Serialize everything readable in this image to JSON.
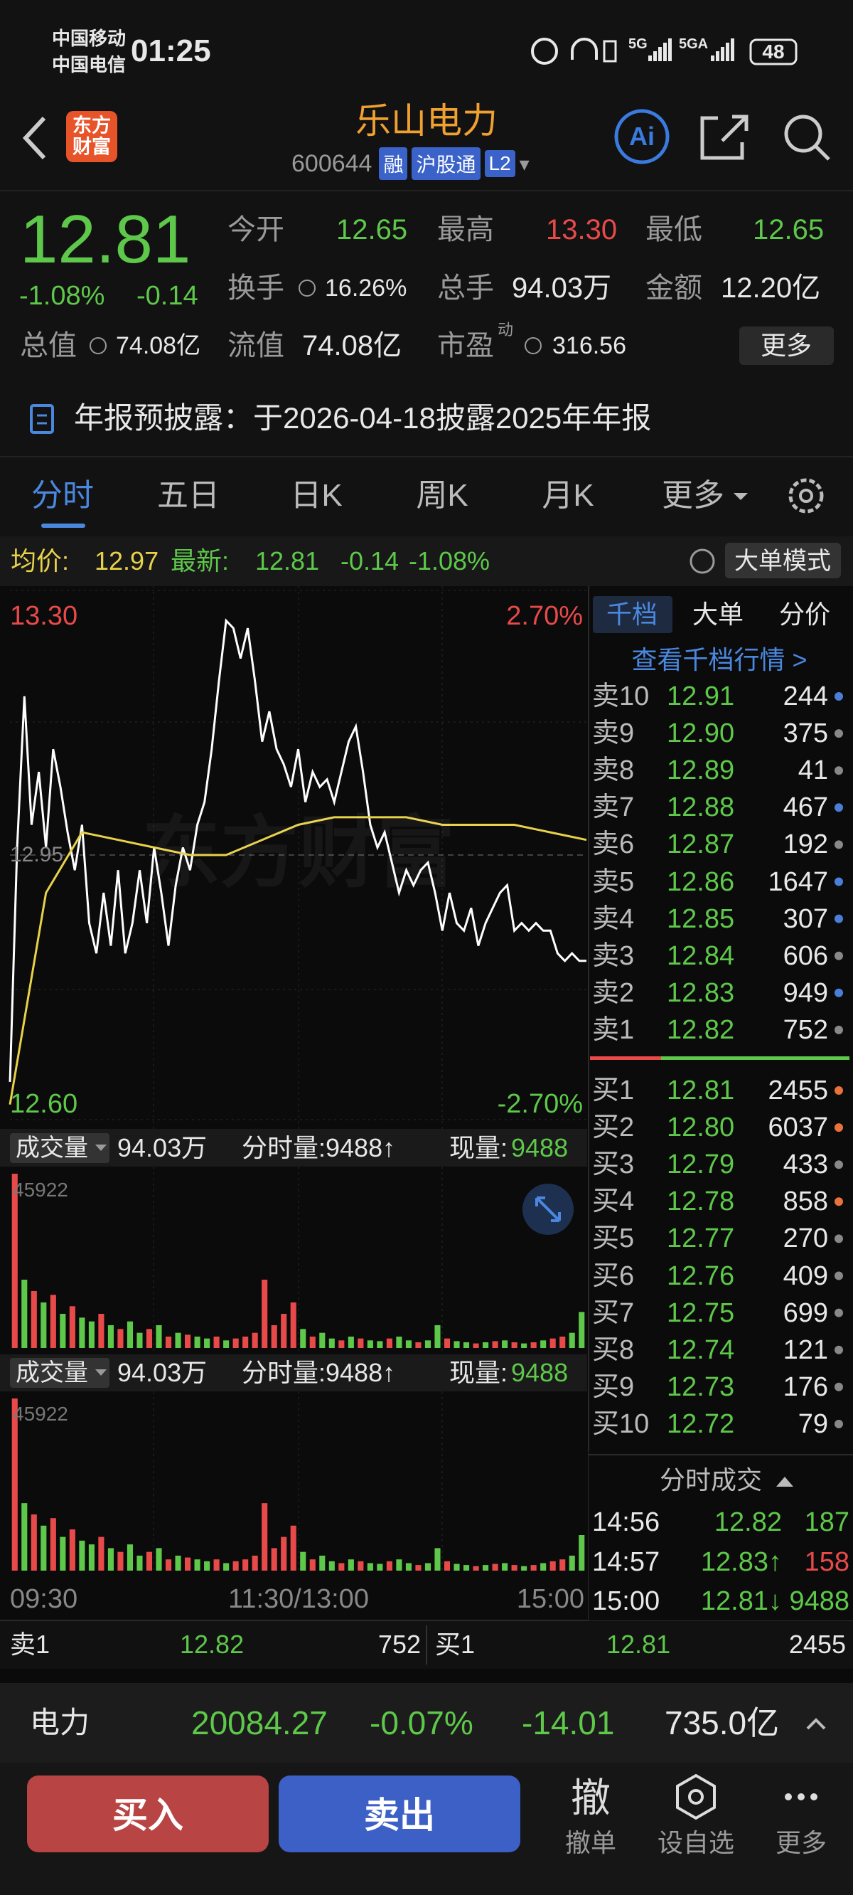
{
  "status_bar": {
    "carrier_1": "中国移动",
    "carrier_2": "中国电信",
    "time": "01:25",
    "network_1": "5G",
    "network_2": "5GA",
    "battery": "48"
  },
  "header": {
    "logo": [
      "东方",
      "财富"
    ],
    "title": "乐山电力",
    "code": "600644",
    "tags": [
      "融",
      "沪股通",
      "L2"
    ],
    "ai": "Ai"
  },
  "quote": {
    "price": "12.81",
    "change_pct": "-1.08%",
    "change": "-0.14",
    "fields": [
      {
        "label": "今开",
        "value": "12.65",
        "color": "#5ec84a"
      },
      {
        "label": "最高",
        "value": "13.30",
        "color": "#e84a4a"
      },
      {
        "label": "最低",
        "value": "12.65",
        "color": "#5ec84a"
      },
      {
        "label": "换手",
        "value": "16.26%",
        "color": "#e8e8e8"
      },
      {
        "label": "总手",
        "value": "94.03万",
        "color": "#e8e8e8"
      },
      {
        "label": "金额",
        "value": "12.20亿",
        "color": "#e8e8e8"
      },
      {
        "label": "总值",
        "value": "74.08亿",
        "color": "#e8e8e8"
      },
      {
        "label": "流值",
        "value": "74.08亿",
        "color": "#e8e8e8"
      },
      {
        "label": "市盈",
        "sup": "动",
        "value": "316.56",
        "color": "#e8e8e8"
      }
    ],
    "more": "更多"
  },
  "notice": "年报预披露：于2026-04-18披露2025年年报",
  "tabs": [
    "分时",
    "五日",
    "日K",
    "周K",
    "月K",
    "更多"
  ],
  "info_bar": {
    "avg_label": "均价:",
    "avg": "12.97",
    "latest_label": "最新:",
    "latest": "12.81",
    "change": "-0.14",
    "change_pct": "-1.08%",
    "mode": "大单模式"
  },
  "price_chart": {
    "type": "line",
    "ylim": [
      12.6,
      13.3
    ],
    "yticks": [
      {
        "value": 12.6,
        "label": "12.60"
      },
      12.95,
      {
        "value": 13.3,
        "label": "13.30"
      }
    ],
    "top_pct": "2.70%",
    "bottom_pct": "-2.70%",
    "watermark": "东方财富",
    "xticks": [
      "09:30",
      "11:30/13:00",
      "15:00"
    ],
    "series": [
      {
        "color": "#ffffff",
        "values": [
          12.65,
          12.96,
          13.16,
          12.99,
          13.06,
          12.96,
          13.09,
          13.04,
          12.98,
          12.93,
          12.99,
          12.86,
          12.82,
          12.9,
          12.83,
          12.93,
          12.82,
          12.86,
          12.93,
          12.86,
          12.96,
          12.9,
          12.83,
          12.91,
          12.96,
          12.93,
          12.99,
          13.02,
          13.09,
          13.18,
          13.26,
          13.25,
          13.21,
          13.25,
          13.18,
          13.1,
          13.14,
          13.09,
          13.07,
          13.04,
          13.09,
          13.02,
          13.06,
          13.04,
          13.05,
          13.02,
          13.06,
          13.1,
          13.12,
          13.06,
          12.99,
          12.96,
          12.98,
          12.94,
          12.9,
          12.93,
          12.91,
          12.93,
          12.94,
          12.9,
          12.85,
          12.9,
          12.86,
          12.85,
          12.88,
          12.83,
          12.86,
          12.88,
          12.9,
          12.91,
          12.85,
          12.86,
          12.85,
          12.86,
          12.85,
          12.85,
          12.82,
          12.81,
          12.82,
          12.81,
          12.81
        ]
      },
      {
        "color": "#e8d24a",
        "values": [
          12.62,
          12.9,
          12.98,
          12.97,
          12.96,
          12.95,
          12.95,
          12.97,
          12.99,
          13.0,
          13.0,
          13.0,
          12.99,
          12.99,
          12.99,
          12.98,
          12.97
        ]
      }
    ]
  },
  "volume": {
    "type": "bar",
    "label": "成交量",
    "total": "94.03万",
    "minute_label": "分时量:9488↑",
    "current_label": "现量:",
    "current": "9488",
    "ylim": [
      0,
      45922
    ],
    "yticks": [
      45922
    ],
    "values": [
      45922,
      18000,
      15000,
      12000,
      14000,
      9000,
      11000,
      8000,
      7000,
      9000,
      6000,
      5000,
      7000,
      4000,
      5000,
      6000,
      3000,
      4000,
      3500,
      3000,
      2500,
      3000,
      2000,
      2500,
      3000,
      4000,
      18000,
      6000,
      9000,
      12000,
      5000,
      3000,
      4000,
      2500,
      2000,
      3000,
      2500,
      2000,
      1800,
      2500,
      3000,
      2000,
      1500,
      2000,
      6000,
      2500,
      1800,
      1500,
      1200,
      1500,
      1800,
      2000,
      1500,
      1200,
      1500,
      2000,
      2500,
      3000,
      4000,
      9488
    ],
    "colors": [
      "#e84a4a",
      "#5ec84a",
      "#e84a4a",
      "#5ec84a",
      "#e84a4a",
      "#5ec84a",
      "#e84a4a",
      "#5ec84a",
      "#5ec84a",
      "#e84a4a",
      "#5ec84a",
      "#e84a4a",
      "#5ec84a",
      "#5ec84a",
      "#e84a4a",
      "#5ec84a",
      "#e84a4a",
      "#5ec84a",
      "#e84a4a",
      "#5ec84a",
      "#5ec84a",
      "#e84a4a",
      "#5ec84a",
      "#e84a4a",
      "#e84a4a",
      "#e84a4a",
      "#e84a4a",
      "#e84a4a",
      "#e84a4a",
      "#e84a4a",
      "#5ec84a",
      "#e84a4a",
      "#5ec84a",
      "#5ec84a",
      "#e84a4a",
      "#5ec84a",
      "#e84a4a",
      "#5ec84a",
      "#5ec84a",
      "#e84a4a",
      "#5ec84a",
      "#5ec84a",
      "#e84a4a",
      "#5ec84a",
      "#5ec84a",
      "#e84a4a",
      "#5ec84a",
      "#5ec84a",
      "#e84a4a",
      "#5ec84a",
      "#e84a4a",
      "#5ec84a",
      "#e84a4a",
      "#5ec84a",
      "#e84a4a",
      "#5ec84a",
      "#e84a4a",
      "#e84a4a",
      "#5ec84a",
      "#5ec84a"
    ]
  },
  "order_book": {
    "tabs": [
      "千档",
      "大单",
      "分价"
    ],
    "link": "查看千档行情 >",
    "asks": [
      {
        "label": "卖10",
        "price": "12.91",
        "qty": "244",
        "dot": "#4a7fd8"
      },
      {
        "label": "卖9",
        "price": "12.90",
        "qty": "375",
        "dot": "#888888"
      },
      {
        "label": "卖8",
        "price": "12.89",
        "qty": "41",
        "dot": "#888888"
      },
      {
        "label": "卖7",
        "price": "12.88",
        "qty": "467",
        "dot": "#4a7fd8"
      },
      {
        "label": "卖6",
        "price": "12.87",
        "qty": "192",
        "dot": "#888888"
      },
      {
        "label": "卖5",
        "price": "12.86",
        "qty": "1647",
        "dot": "#4a7fd8"
      },
      {
        "label": "卖4",
        "price": "12.85",
        "qty": "307",
        "dot": "#4a7fd8"
      },
      {
        "label": "卖3",
        "price": "12.84",
        "qty": "606",
        "dot": "#888888"
      },
      {
        "label": "卖2",
        "price": "12.83",
        "qty": "949",
        "dot": "#4a7fd8"
      },
      {
        "label": "卖1",
        "price": "12.82",
        "qty": "752",
        "dot": "#888888"
      }
    ],
    "bids": [
      {
        "label": "买1",
        "price": "12.81",
        "qty": "2455",
        "dot": "#e8723a"
      },
      {
        "label": "买2",
        "price": "12.80",
        "qty": "6037",
        "dot": "#e8723a"
      },
      {
        "label": "买3",
        "price": "12.79",
        "qty": "433",
        "dot": "#888888"
      },
      {
        "label": "买4",
        "price": "12.78",
        "qty": "858",
        "dot": "#e8723a"
      },
      {
        "label": "买5",
        "price": "12.77",
        "qty": "270",
        "dot": "#888888"
      },
      {
        "label": "买6",
        "price": "12.76",
        "qty": "409",
        "dot": "#888888"
      },
      {
        "label": "买7",
        "price": "12.75",
        "qty": "699",
        "dot": "#888888"
      },
      {
        "label": "买8",
        "price": "12.74",
        "qty": "121",
        "dot": "#888888"
      },
      {
        "label": "买9",
        "price": "12.73",
        "qty": "176",
        "dot": "#888888"
      },
      {
        "label": "买10",
        "price": "12.72",
        "qty": "79",
        "dot": "#888888"
      }
    ]
  },
  "trades": {
    "title": "分时成交",
    "rows": [
      [
        "14:56",
        "12.82",
        "187"
      ],
      [
        "14:57",
        "12.83↑",
        "158"
      ],
      [
        "15:00",
        "12.81↓",
        "9488"
      ]
    ],
    "qty_colors": [
      "#5ec84a",
      "#e84a4a",
      "#5ec84a"
    ]
  },
  "bottom_quote": {
    "ask_label": "卖1",
    "ask_price": "12.82",
    "ask_qty": "752",
    "bid_label": "买1",
    "bid_price": "12.81",
    "bid_qty": "2455"
  },
  "index_bar": {
    "name": "电力",
    "value": "20084.27",
    "change_pct": "-0.07%",
    "change": "-14.01",
    "amount": "735.0亿"
  },
  "actions": {
    "buy": "买入",
    "sell": "卖出",
    "cancel_icon": "撤",
    "cancel": "撤单",
    "watch": "设自选",
    "more": "更多"
  }
}
